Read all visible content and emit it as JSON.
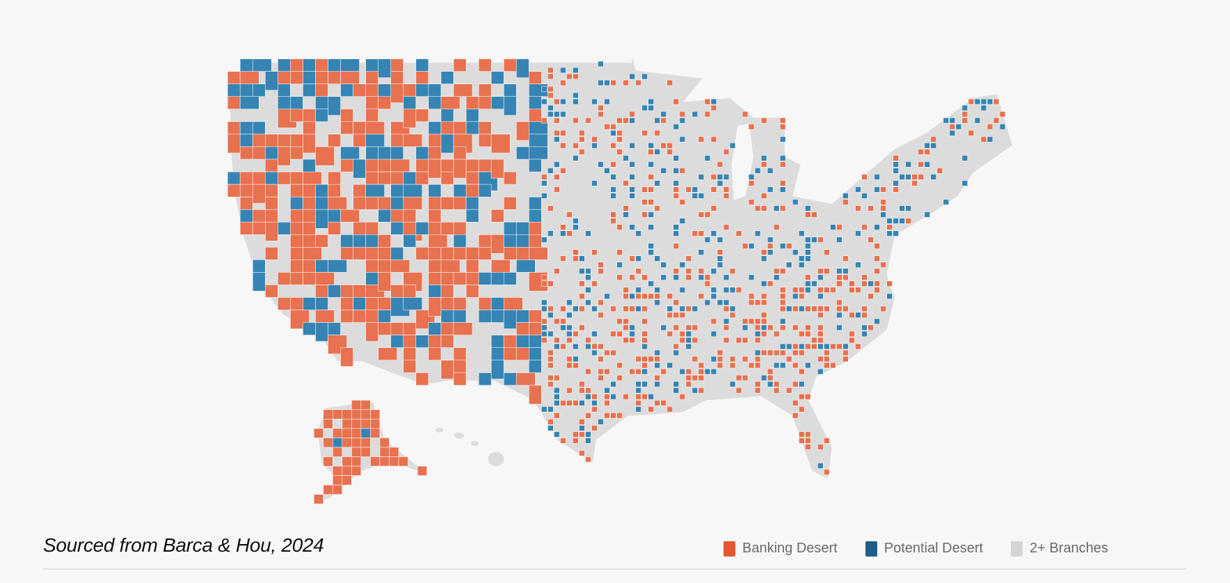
{
  "caption": "Sourced from Barca & Hou, 2024",
  "legend": [
    {
      "label": "Banking Desert",
      "color": "#E4572E"
    },
    {
      "label": "Potential Desert",
      "color": "#1F5F8B"
    },
    {
      "label": "2+ Branches",
      "color": "#D4D4D4"
    }
  ],
  "map_colors": {
    "desert": "#E8714F",
    "potential": "#3584B4",
    "branches": "#DCDCDC",
    "border": "#ffffff"
  }
}
